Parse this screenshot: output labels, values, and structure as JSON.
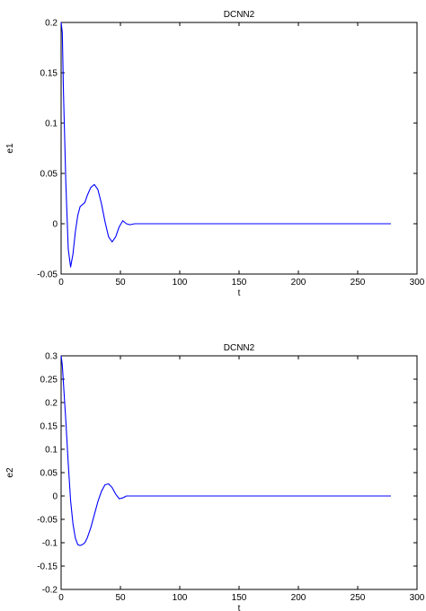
{
  "chart_data": [
    {
      "type": "line",
      "title": "DCNN2",
      "xlabel": "t",
      "ylabel": "e1",
      "xlim": [
        0,
        300
      ],
      "ylim": [
        -0.05,
        0.2
      ],
      "xticks": [
        0,
        50,
        100,
        150,
        200,
        250,
        300
      ],
      "xtick_labels": [
        "0",
        "50",
        "100",
        "150",
        "200",
        "250",
        "300"
      ],
      "yticks": [
        -0.05,
        0,
        0.05,
        0.1,
        0.15,
        0.2
      ],
      "ytick_labels": [
        "-0.05",
        "0",
        "0.05",
        "0.1",
        "0.15",
        "0.2"
      ],
      "grid": false,
      "color": "#0000ff",
      "series": [
        {
          "x": [
            0,
            1,
            2,
            4,
            6,
            8,
            10,
            12,
            14,
            16,
            18,
            20,
            22,
            25,
            28,
            31,
            34,
            37,
            40,
            43,
            46,
            49,
            52,
            55,
            58,
            62,
            70,
            100,
            150,
            200,
            250,
            278
          ],
          "y": [
            0.2,
            0.19,
            0.13,
            0.04,
            -0.025,
            -0.043,
            -0.03,
            -0.008,
            0.008,
            0.017,
            0.019,
            0.021,
            0.028,
            0.036,
            0.039,
            0.034,
            0.02,
            0.002,
            -0.013,
            -0.018,
            -0.013,
            -0.003,
            0.003,
            0.0,
            -0.001,
            0.0,
            0.0,
            0.0,
            0.0,
            0.0,
            0.0,
            0.0
          ]
        }
      ]
    },
    {
      "type": "line",
      "title": "DCNN2",
      "xlabel": "t",
      "ylabel": "e2",
      "xlim": [
        0,
        300
      ],
      "ylim": [
        -0.2,
        0.3
      ],
      "xticks": [
        0,
        50,
        100,
        150,
        200,
        250,
        300
      ],
      "xtick_labels": [
        "0",
        "50",
        "100",
        "150",
        "200",
        "250",
        "300"
      ],
      "yticks": [
        -0.2,
        -0.15,
        -0.1,
        -0.05,
        0,
        0.05,
        0.1,
        0.15,
        0.2,
        0.25,
        0.3
      ],
      "ytick_labels": [
        "-0.2",
        "-0.15",
        "-0.1",
        "-0.05",
        "0",
        "0.05",
        "0.1",
        "0.15",
        "0.2",
        "0.25",
        "0.3"
      ],
      "grid": false,
      "color": "#0000ff",
      "series": [
        {
          "x": [
            0,
            1,
            2,
            3,
            4,
            6,
            8,
            10,
            12,
            14,
            16,
            18,
            20,
            22,
            25,
            28,
            31,
            34,
            37,
            40,
            43,
            46,
            49,
            52,
            55,
            58,
            62,
            70,
            100,
            150,
            200,
            250,
            278
          ],
          "y": [
            0.3,
            0.28,
            0.24,
            0.2,
            0.16,
            0.07,
            -0.01,
            -0.06,
            -0.09,
            -0.104,
            -0.106,
            -0.104,
            -0.1,
            -0.09,
            -0.068,
            -0.04,
            -0.012,
            0.01,
            0.024,
            0.026,
            0.018,
            0.004,
            -0.006,
            -0.004,
            0.0,
            0.0,
            0.0,
            0.0,
            0.0,
            0.0,
            0.0,
            0.0,
            0.0
          ]
        }
      ]
    }
  ]
}
